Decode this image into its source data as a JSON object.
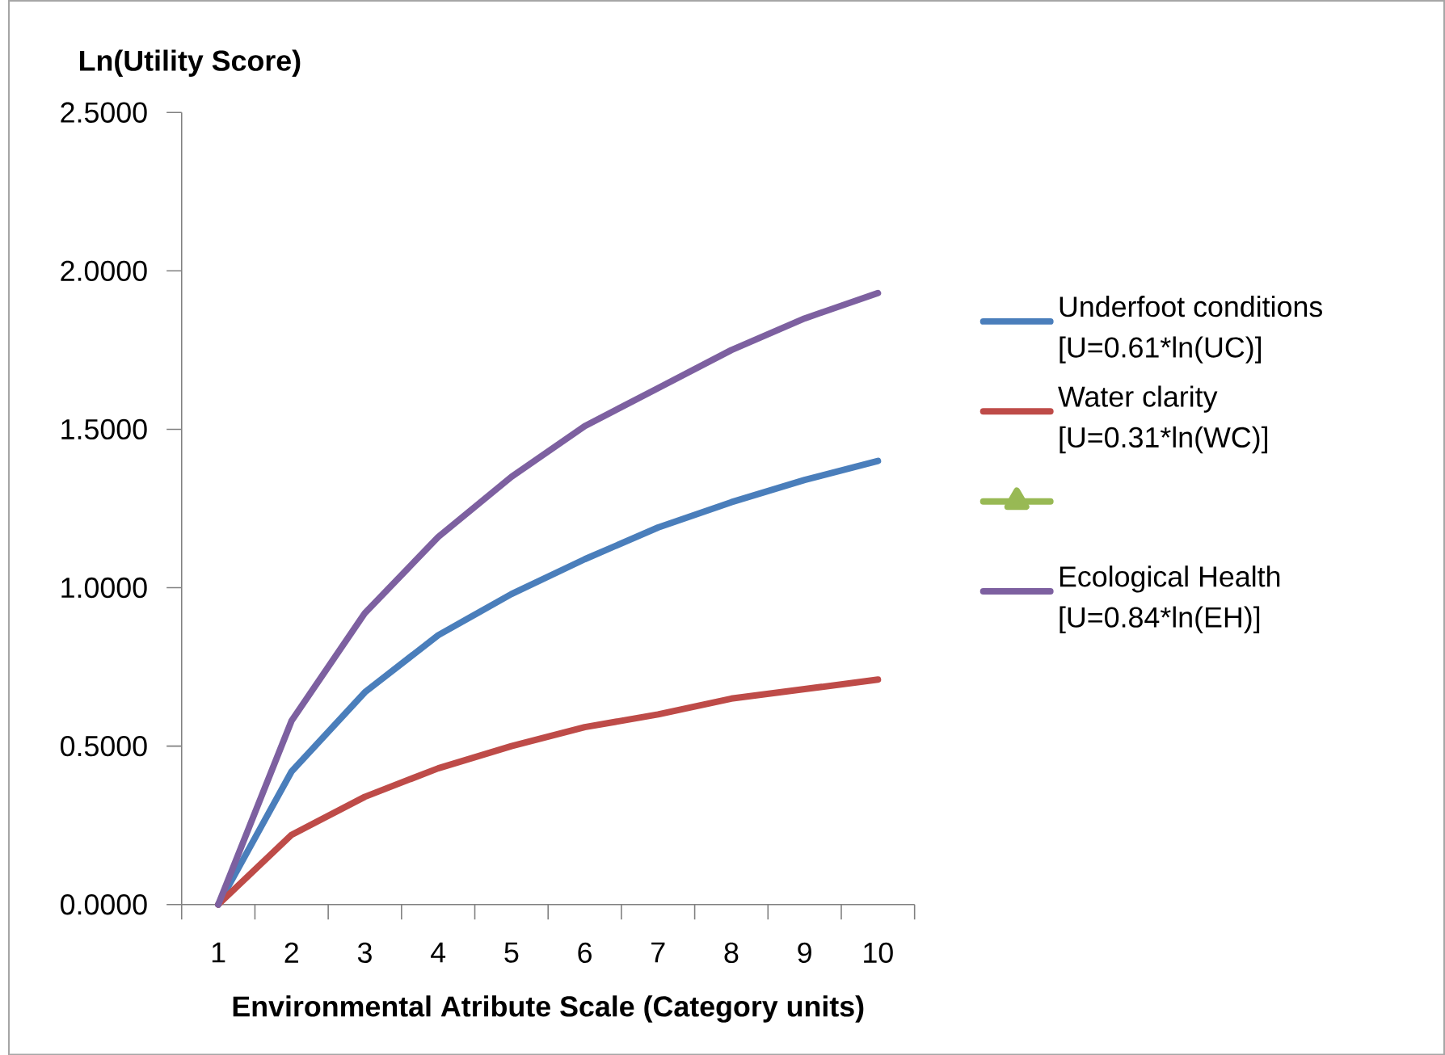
{
  "chart_data": {
    "type": "line",
    "xlabel": "Environmental Atribute Scale (Category units)",
    "ylabel": "Ln(Utility Score)",
    "categories": [
      "1",
      "2",
      "3",
      "4",
      "5",
      "6",
      "7",
      "8",
      "9",
      "10"
    ],
    "ylim": [
      0,
      2.5
    ],
    "yticks": [
      {
        "value": 0,
        "label": "0.0000"
      },
      {
        "value": 0.5,
        "label": "0.5000"
      },
      {
        "value": 1,
        "label": "1.0000"
      },
      {
        "value": 1.5,
        "label": "1.5000"
      },
      {
        "value": 2,
        "label": "2.0000"
      },
      {
        "value": 2.5,
        "label": "2.5000"
      }
    ],
    "series": [
      {
        "name": "Underfoot conditions [U=0.61*ln(UC)]",
        "color": "#4a7ebb",
        "values": [
          0,
          0.42,
          0.67,
          0.85,
          0.98,
          1.09,
          1.19,
          1.27,
          1.34,
          1.4
        ]
      },
      {
        "name": "Water clarity [U=0.31*ln(WC)]",
        "color": "#be4b48",
        "values": [
          0,
          0.22,
          0.34,
          0.43,
          0.5,
          0.56,
          0.6,
          0.65,
          0.68,
          0.71
        ]
      },
      {
        "color": "#98b954",
        "marker": "triangle",
        "values": [
          null,
          null,
          null,
          null,
          null,
          null,
          null,
          null,
          null,
          null
        ]
      },
      {
        "name": "Ecological Health [U=0.84*ln(EH)]",
        "color": "#7d60a0",
        "values": [
          0,
          0.58,
          0.92,
          1.16,
          1.35,
          1.51,
          1.63,
          1.75,
          1.85,
          1.93
        ]
      }
    ],
    "legend": "right",
    "grid": false,
    "marker": "none",
    "line_style": "solid"
  }
}
